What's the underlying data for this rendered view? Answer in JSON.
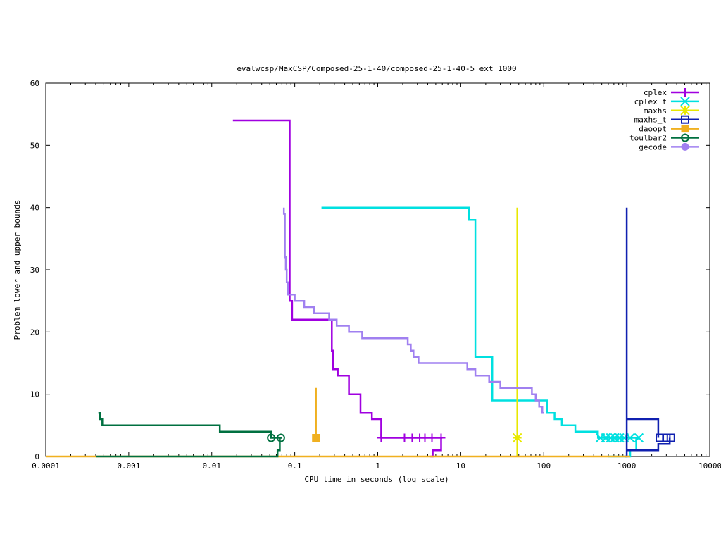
{
  "chart_data": {
    "type": "line",
    "title": "evalwcsp/MaxCSP/Composed-25-1-40/composed-25-1-40-5_ext_1000",
    "xlabel": "CPU time in seconds (log scale)",
    "ylabel": "Problem lower and upper bounds",
    "xscale": "log",
    "xlim": [
      0.0001,
      10000
    ],
    "ylim": [
      0,
      60
    ],
    "xticks": [
      {
        "value": 0.0001,
        "label": "0.0001"
      },
      {
        "value": 0.001,
        "label": "0.001"
      },
      {
        "value": 0.01,
        "label": "0.01"
      },
      {
        "value": 0.1,
        "label": "0.1"
      },
      {
        "value": 1,
        "label": "1"
      },
      {
        "value": 10,
        "label": "10"
      },
      {
        "value": 100,
        "label": "100"
      },
      {
        "value": 1000,
        "label": "1000"
      },
      {
        "value": 10000,
        "label": "10000"
      }
    ],
    "yticks": [
      {
        "value": 0,
        "label": "0"
      },
      {
        "value": 10,
        "label": "10"
      },
      {
        "value": 20,
        "label": "20"
      },
      {
        "value": 30,
        "label": "30"
      },
      {
        "value": 40,
        "label": "40"
      },
      {
        "value": 50,
        "label": "50"
      },
      {
        "value": 60,
        "label": "60"
      }
    ],
    "legend_position": "top-right",
    "series": [
      {
        "name": "cplex",
        "color": "#a000e0",
        "marker": "plus",
        "segments": [
          [
            [
              0.018,
              54
            ],
            [
              0.087,
              54
            ],
            [
              0.087,
              25
            ],
            [
              0.093,
              25
            ],
            [
              0.093,
              22
            ],
            [
              0.28,
              22
            ],
            [
              0.28,
              17
            ],
            [
              0.29,
              17
            ],
            [
              0.29,
              14
            ],
            [
              0.33,
              14
            ],
            [
              0.33,
              13
            ],
            [
              0.45,
              13
            ],
            [
              0.45,
              10
            ],
            [
              0.62,
              10
            ],
            [
              0.62,
              7
            ],
            [
              0.85,
              7
            ],
            [
              0.85,
              6
            ],
            [
              1.1,
              6
            ],
            [
              1.1,
              3
            ],
            [
              6.0,
              3
            ]
          ],
          [
            [
              4.3,
              0
            ],
            [
              4.6,
              0
            ],
            [
              4.6,
              1
            ],
            [
              5.8,
              1
            ],
            [
              5.8,
              3
            ]
          ]
        ],
        "markers": [
          [
            1.1,
            3
          ],
          [
            2.1,
            3
          ],
          [
            2.6,
            3
          ],
          [
            3.2,
            3
          ],
          [
            3.7,
            3
          ],
          [
            4.5,
            3
          ],
          [
            5.8,
            3
          ]
        ]
      },
      {
        "name": "cplex_t",
        "color": "#00e0e0",
        "marker": "x",
        "segments": [
          [
            [
              0.21,
              40
            ],
            [
              12.5,
              40
            ],
            [
              12.5,
              38
            ],
            [
              15.0,
              38
            ],
            [
              15.0,
              16
            ],
            [
              24,
              16
            ],
            [
              24,
              9
            ],
            [
              110,
              9
            ],
            [
              110,
              7
            ],
            [
              135,
              7
            ],
            [
              135,
              6
            ],
            [
              165,
              6
            ],
            [
              165,
              5
            ],
            [
              240,
              5
            ],
            [
              240,
              4
            ],
            [
              450,
              4
            ],
            [
              450,
              3
            ],
            [
              1400,
              3
            ]
          ],
          [
            [
              600,
              0
            ],
            [
              1100,
              0
            ],
            [
              1100,
              1
            ],
            [
              1300,
              1
            ],
            [
              1300,
              3
            ]
          ]
        ],
        "markers": [
          [
            480,
            3
          ],
          [
            560,
            3
          ],
          [
            640,
            3
          ],
          [
            720,
            3
          ],
          [
            820,
            3
          ],
          [
            930,
            3
          ],
          [
            1100,
            3
          ],
          [
            1400,
            3
          ]
        ]
      },
      {
        "name": "maxhs",
        "color": "#e8e800",
        "marker": "star",
        "segments": [
          [
            [
              48,
              0
            ],
            [
              48,
              40
            ]
          ]
        ],
        "markers": [
          [
            48,
            3
          ]
        ]
      },
      {
        "name": "maxhs_t",
        "color": "#1020b0",
        "marker": "square",
        "segments": [
          [
            [
              950,
              0
            ],
            [
              1000,
              0
            ],
            [
              1000,
              40
            ]
          ],
          [
            [
              1000,
              6
            ],
            [
              2400,
              6
            ],
            [
              2400,
              3
            ]
          ],
          [
            [
              1000,
              1
            ],
            [
              2400,
              1
            ],
            [
              2400,
              2
            ],
            [
              3300,
              2
            ],
            [
              3300,
              3
            ]
          ]
        ],
        "markers": [
          [
            2500,
            3
          ],
          [
            3000,
            3
          ],
          [
            3400,
            3
          ]
        ]
      },
      {
        "name": "daoopt",
        "color": "#f0b020",
        "marker": "filled-square",
        "segments": [
          [
            [
              0.0001,
              0
            ],
            [
              1100,
              0
            ]
          ],
          [
            [
              0.18,
              3
            ],
            [
              0.18,
              11
            ]
          ]
        ],
        "markers": [
          [
            0.18,
            3
          ]
        ]
      },
      {
        "name": "toulbar2",
        "color": "#007040",
        "marker": "circle",
        "segments": [
          [
            [
              0.00043,
              7
            ],
            [
              0.00045,
              7
            ],
            [
              0.00045,
              6
            ],
            [
              0.00048,
              6
            ],
            [
              0.00048,
              5
            ],
            [
              0.0125,
              5
            ],
            [
              0.0125,
              4
            ],
            [
              0.052,
              4
            ],
            [
              0.052,
              3
            ],
            [
              0.07,
              3
            ]
          ],
          [
            [
              0.0004,
              0
            ],
            [
              0.062,
              0
            ],
            [
              0.062,
              1
            ],
            [
              0.066,
              1
            ],
            [
              0.066,
              3
            ]
          ]
        ],
        "markers": [
          [
            0.052,
            3
          ],
          [
            0.068,
            3
          ]
        ]
      },
      {
        "name": "gecode",
        "color": "#a080f0",
        "marker": "filled-circle",
        "segments": [
          [
            [
              0.074,
              40
            ],
            [
              0.074,
              39
            ],
            [
              0.076,
              39
            ],
            [
              0.076,
              32
            ],
            [
              0.078,
              32
            ],
            [
              0.078,
              30
            ],
            [
              0.08,
              30
            ],
            [
              0.08,
              28
            ],
            [
              0.083,
              28
            ],
            [
              0.083,
              26
            ],
            [
              0.1,
              26
            ],
            [
              0.1,
              25
            ],
            [
              0.13,
              25
            ],
            [
              0.13,
              24
            ],
            [
              0.17,
              24
            ],
            [
              0.17,
              23
            ],
            [
              0.26,
              23
            ],
            [
              0.26,
              22
            ],
            [
              0.32,
              22
            ],
            [
              0.32,
              21
            ],
            [
              0.45,
              21
            ],
            [
              0.45,
              20
            ],
            [
              0.65,
              20
            ],
            [
              0.65,
              19
            ],
            [
              2.3,
              19
            ],
            [
              2.3,
              18
            ],
            [
              2.5,
              18
            ],
            [
              2.5,
              17
            ],
            [
              2.7,
              17
            ],
            [
              2.7,
              16
            ],
            [
              3.1,
              16
            ],
            [
              3.1,
              15
            ],
            [
              12,
              15
            ],
            [
              12,
              14
            ],
            [
              15,
              14
            ],
            [
              15,
              13
            ],
            [
              22,
              13
            ],
            [
              22,
              12
            ],
            [
              30,
              12
            ],
            [
              30,
              11
            ],
            [
              72,
              11
            ],
            [
              72,
              10
            ],
            [
              80,
              10
            ],
            [
              80,
              9
            ],
            [
              88,
              9
            ],
            [
              88,
              8
            ],
            [
              96,
              8
            ],
            [
              96,
              7
            ],
            [
              100,
              7
            ]
          ]
        ],
        "markers": []
      }
    ]
  }
}
